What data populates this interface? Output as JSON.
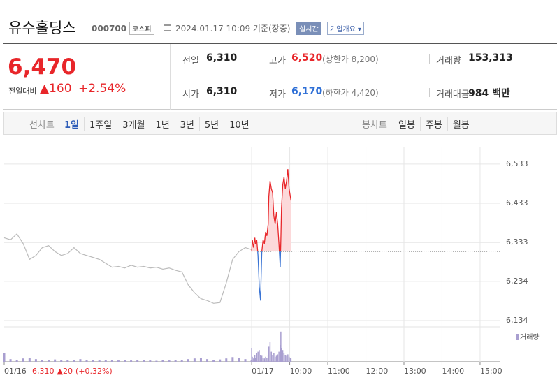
{
  "header": {
    "title": "유수홀딩스",
    "code": "000700",
    "market": "코스피",
    "timestamp": "2024.01.17 10:09 기준(장중)",
    "realtime": "실시간",
    "company_info": "기업개요"
  },
  "quote": {
    "price": "6,470",
    "color": "#e8262a",
    "change_label": "전일대비",
    "change": "▲160",
    "change_rate": "+2.54%",
    "rows": [
      [
        {
          "label": "전일",
          "value": "6,310",
          "color": "#222222"
        },
        {
          "label": "고가",
          "value": "6,520",
          "color": "#e8262a",
          "note": "(상한가 8,200)"
        },
        {
          "label": "거래량",
          "value": "153,313",
          "color": "#222222"
        }
      ],
      [
        {
          "label": "시가",
          "value": "6,310",
          "color": "#222222"
        },
        {
          "label": "저가",
          "value": "6,170",
          "color": "#2e6fd6",
          "note": "(하한가 4,420)"
        },
        {
          "label": "거래대금",
          "value": "984 백만",
          "color": "#222222"
        }
      ]
    ]
  },
  "tabs": {
    "line_label": "선차트",
    "line_items": [
      "1일",
      "1주일",
      "3개월",
      "1년",
      "3년",
      "5년",
      "10년"
    ],
    "line_selected": 0,
    "candle_label": "봉차트",
    "candle_items": [
      "일봉",
      "주봉",
      "월봉"
    ]
  },
  "chart_data": {
    "type": "line",
    "xlim": [
      -390,
      392
    ],
    "xticks": [
      {
        "value": -390,
        "label": "01/16"
      },
      {
        "value": 0,
        "label": "01/17"
      },
      {
        "value": 60,
        "label": "10:00"
      },
      {
        "value": 120,
        "label": "11:00"
      },
      {
        "value": 180,
        "label": "12:00"
      },
      {
        "value": 240,
        "label": "13:00"
      },
      {
        "value": 300,
        "label": "14:00"
      },
      {
        "value": 360,
        "label": "15:00"
      }
    ],
    "ylim": [
      6118,
      6604
    ],
    "yticks": [
      {
        "value": 6134,
        "label": "6,134"
      },
      {
        "value": 6234,
        "label": "6,234"
      },
      {
        "value": 6333,
        "label": "6,333"
      },
      {
        "value": 6433,
        "label": "6,433"
      },
      {
        "value": 6533,
        "label": "6,533"
      }
    ],
    "grid": true,
    "baseline": 6310,
    "series": [
      {
        "color": "#bbbbbb",
        "x": [
          -390,
          -380,
          -370,
          -360,
          -350,
          -340,
          -330,
          -320,
          -310,
          -300,
          -290,
          -280,
          -270,
          -260,
          -250,
          -240,
          -230,
          -220,
          -210,
          -200,
          -190,
          -180,
          -170,
          -160,
          -150,
          -140,
          -130,
          -120,
          -110,
          -100,
          -90,
          -80,
          -70,
          -60,
          -50,
          -40,
          -30,
          -20,
          -10,
          0
        ],
        "values": [
          6345,
          6340,
          6355,
          6330,
          6290,
          6300,
          6320,
          6325,
          6310,
          6300,
          6305,
          6320,
          6305,
          6300,
          6295,
          6290,
          6280,
          6270,
          6272,
          6268,
          6275,
          6270,
          6272,
          6268,
          6270,
          6265,
          6268,
          6262,
          6258,
          6225,
          6205,
          6190,
          6185,
          6178,
          6180,
          6230,
          6290,
          6310,
          6320,
          6315
        ],
        "volume": [
          25,
          8,
          6,
          10,
          12,
          8,
          5,
          6,
          7,
          5,
          6,
          5,
          8,
          6,
          5,
          4,
          6,
          5,
          4,
          5,
          4,
          6,
          5,
          4,
          3,
          5,
          4,
          6,
          5,
          8,
          10,
          12,
          8,
          6,
          7,
          10,
          14,
          12,
          8,
          6
        ]
      },
      {
        "color": "#e8262a",
        "down_color": "#3a74d4",
        "fill": "#fcd9da",
        "x": [
          0,
          1,
          3,
          5,
          6,
          8,
          10,
          12,
          14,
          15,
          16,
          18,
          20,
          22,
          24,
          26,
          27,
          29,
          31,
          33,
          35,
          37,
          39,
          41,
          43,
          45,
          46,
          47,
          49,
          51,
          53,
          55,
          57,
          59,
          61,
          62
        ],
        "values": [
          6310,
          6340,
          6320,
          6345,
          6330,
          6340,
          6300,
          6220,
          6185,
          6250,
          6310,
          6340,
          6330,
          6360,
          6350,
          6380,
          6450,
          6490,
          6470,
          6460,
          6400,
          6380,
          6410,
          6380,
          6330,
          6270,
          6340,
          6420,
          6480,
          6500,
          6470,
          6490,
          6520,
          6470,
          6450,
          6440
        ],
        "volume": [
          40,
          15,
          10,
          20,
          12,
          25,
          30,
          35,
          20,
          15,
          18,
          12,
          10,
          15,
          12,
          20,
          45,
          60,
          30,
          20,
          25,
          15,
          18,
          22,
          30,
          50,
          90,
          40,
          35,
          25,
          20,
          18,
          22,
          15,
          12,
          10
        ]
      }
    ],
    "volume_label": "거래량",
    "volume_color": "#a99fd0",
    "volume_ylim": [
      0,
      100
    ],
    "prev_day": {
      "close": "6,310",
      "change": "▲20",
      "change_rate": "(+0.32%)",
      "color": "#e8262a"
    }
  }
}
